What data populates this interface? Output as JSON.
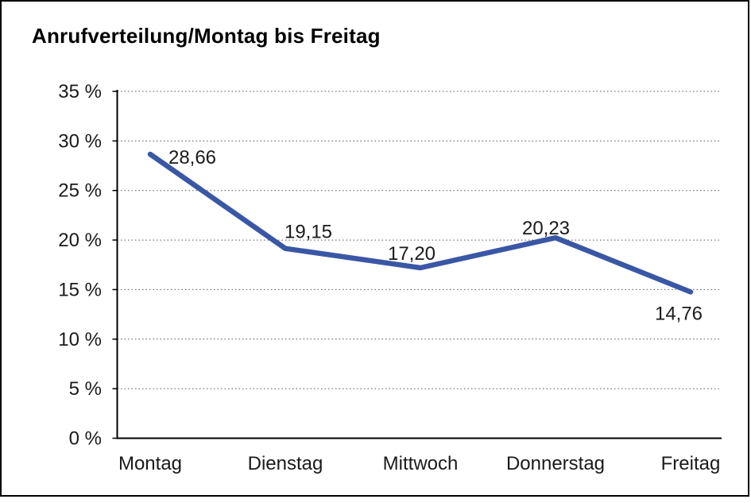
{
  "chart_data": {
    "type": "line",
    "title": "Anrufverteilung/Montag bis Freitag",
    "categories": [
      "Montag",
      "Dienstag",
      "Mittwoch",
      "Donnerstag",
      "Freitag"
    ],
    "series": [
      {
        "name": "Anrufverteilung",
        "values": [
          28.66,
          19.15,
          17.2,
          20.23,
          14.76
        ]
      }
    ],
    "value_labels": [
      "28,66",
      "19,15",
      "17,20",
      "20,23",
      "14,76"
    ],
    "unit": "%",
    "xlabel": "",
    "ylabel": "",
    "ylim": [
      0,
      35
    ],
    "ytick_step": 5,
    "ytick_labels": [
      "0 %",
      "5 %",
      "10 %",
      "15 %",
      "20 %",
      "25 %",
      "30 %",
      "35 %"
    ],
    "grid": "horizontal-dotted",
    "legend": "none",
    "colors": {
      "line": "#3A57A5",
      "axis": "#000000",
      "grid": "#555555",
      "text": "#1A1A1A",
      "background": "#FFFFFF",
      "border": "#000000"
    }
  }
}
